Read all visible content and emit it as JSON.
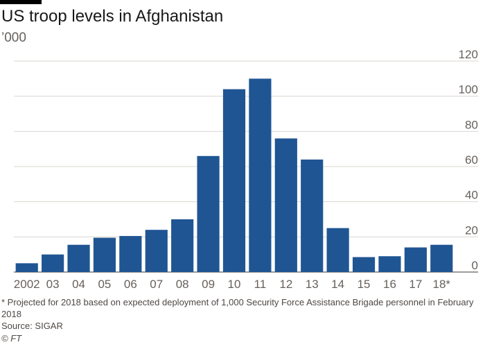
{
  "chart_data": {
    "type": "bar",
    "title": "US troop levels in Afghanistan",
    "subtitle": "’000",
    "xlabel": "",
    "ylabel": "",
    "categories": [
      "2002",
      "03",
      "04",
      "05",
      "06",
      "07",
      "08",
      "09",
      "10",
      "11",
      "12",
      "13",
      "14",
      "15",
      "16",
      "17",
      "18*"
    ],
    "values": [
      5,
      10,
      15.5,
      19.5,
      20.5,
      24,
      30,
      66,
      104,
      110,
      76,
      64,
      25,
      8.5,
      9,
      14,
      15.5
    ],
    "ylim": [
      0,
      120
    ],
    "yticks": [
      0,
      20,
      40,
      60,
      80,
      100,
      120
    ],
    "grid": true,
    "y_axis_side": "right",
    "bar_color": "#1f5593"
  },
  "footnote": "* Projected for 2018 based on expected deployment of 1,000 Security Force Assistance Brigade personnel in February 2018",
  "source": "Source: SIGAR",
  "credit": "© FT"
}
